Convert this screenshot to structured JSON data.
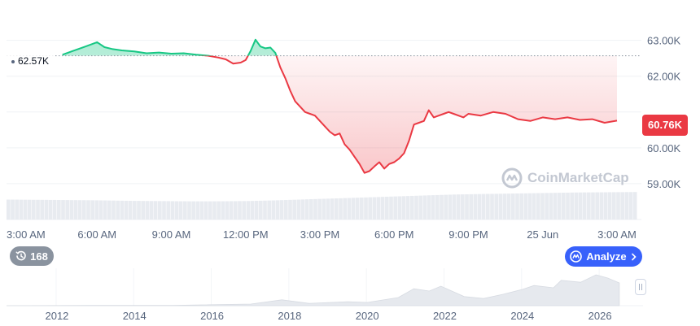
{
  "chart_data": {
    "type": "area",
    "main": {
      "y_ticks": [
        "63.00K",
        "62.00K",
        "60.00K",
        "59.00K"
      ],
      "y_tick_values": [
        63000,
        62000,
        60000,
        59000
      ],
      "ylim": [
        58000,
        63900
      ],
      "x_ticks": [
        "3:00 AM",
        "6:00 AM",
        "9:00 AM",
        "12:00 PM",
        "3:00 PM",
        "6:00 PM",
        "9:00 PM",
        "25 Jun",
        "3:00 AM"
      ],
      "x_tick_hours": [
        0,
        3,
        6,
        9,
        12,
        15,
        18,
        21,
        24
      ],
      "x_range_hours": [
        0,
        24
      ],
      "reference_value": 62570,
      "reference_label": "62.57K",
      "last_value_label": "60.76K",
      "colors": {
        "above": "#16c784",
        "below": "#ea3943"
      },
      "series": [
        {
          "x": [
            1.6,
            2.0,
            2.5,
            3.0,
            3.3,
            3.6,
            4.0,
            4.5,
            5.0,
            5.5,
            6.0,
            6.5,
            7.0,
            7.5,
            7.9,
            8.2,
            8.5,
            8.8,
            9.0,
            9.2,
            9.4,
            9.6,
            9.8,
            10.0,
            10.2,
            10.4,
            10.6,
            10.8,
            11.0,
            11.2,
            11.4,
            11.6,
            11.8,
            12.0,
            12.2,
            12.4,
            12.6,
            12.8,
            13.0,
            13.2,
            13.4,
            13.6,
            13.8,
            14.0,
            14.2,
            14.4,
            14.6,
            14.8,
            15.0,
            15.2,
            15.4,
            15.6,
            15.8,
            16.0,
            16.2,
            16.4,
            16.6,
            16.8,
            17.0,
            17.2,
            17.4,
            17.6,
            17.8,
            18.0,
            18.5,
            19.0,
            19.5,
            20.0,
            20.5,
            21.0,
            21.5,
            22.0,
            22.5,
            23.0,
            23.5,
            24.0
          ],
          "y": [
            62600,
            62700,
            62820,
            62950,
            62810,
            62760,
            62720,
            62690,
            62640,
            62660,
            62630,
            62640,
            62600,
            62570,
            62520,
            62470,
            62350,
            62380,
            62450,
            62700,
            63020,
            62830,
            62780,
            62800,
            62650,
            62250,
            61950,
            61600,
            61300,
            61150,
            61000,
            60950,
            60900,
            60750,
            60600,
            60450,
            60350,
            60400,
            60100,
            59950,
            59750,
            59550,
            59300,
            59350,
            59480,
            59600,
            59420,
            59550,
            59600,
            59700,
            59850,
            60200,
            60650,
            60700,
            60750,
            61050,
            60850,
            60900,
            60950,
            61000,
            60950,
            60900,
            60850,
            60950,
            60900,
            61000,
            60950,
            60800,
            60750,
            60850,
            60800,
            60850,
            60780,
            60800,
            60700,
            60760
          ]
        }
      ],
      "volume_level": [
        0.55,
        0.54,
        0.53,
        0.52,
        0.5,
        0.49,
        0.48,
        0.48,
        0.49,
        0.52,
        0.56,
        0.6,
        0.64,
        0.68,
        0.72,
        0.76,
        0.78,
        0.8,
        0.82,
        0.84,
        0.85,
        0.86
      ]
    },
    "overview": {
      "x_ticks": [
        "2012",
        "2014",
        "2016",
        "2018",
        "2020",
        "2022",
        "2024",
        "2026"
      ],
      "x_tick_years": [
        2012,
        2014,
        2016,
        2018,
        2020,
        2022,
        2024,
        2026
      ],
      "x_range_years": [
        2010.7,
        2026.9
      ],
      "profile": {
        "years": [
          2010.7,
          2013.0,
          2015.0,
          2017.0,
          2017.8,
          2018.5,
          2019.5,
          2020.0,
          2020.8,
          2021.2,
          2021.6,
          2021.9,
          2022.5,
          2023.0,
          2023.5,
          2024.0,
          2024.3,
          2024.8,
          2025.0,
          2025.5,
          2025.9,
          2026.2,
          2026.5
        ],
        "level": [
          0.0,
          0.01,
          0.01,
          0.05,
          0.18,
          0.07,
          0.12,
          0.1,
          0.25,
          0.52,
          0.45,
          0.6,
          0.28,
          0.22,
          0.35,
          0.5,
          0.62,
          0.55,
          0.78,
          0.72,
          0.95,
          0.85,
          0.7
        ]
      }
    }
  },
  "ui": {
    "history_count": "168",
    "analyze_label": "Analyze",
    "watermark_text": "CoinMarketCap",
    "icons": {
      "history": "history-icon",
      "analyze": "analyze-icon",
      "chevron": "chevron-right-icon",
      "logo": "coinmarketcap-logo-icon"
    }
  }
}
